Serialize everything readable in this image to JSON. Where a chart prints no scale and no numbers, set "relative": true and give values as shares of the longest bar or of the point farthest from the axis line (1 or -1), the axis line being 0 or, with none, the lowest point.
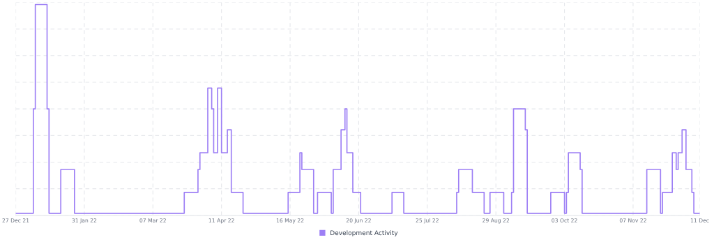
{
  "chart_data": {
    "type": "step",
    "relative": true,
    "grid": true,
    "legend": "bottom",
    "tick_labels": "x",
    "xlim": [
      "2021-12-27",
      "2022-12-11"
    ],
    "xticks": [
      {
        "value": "2021-12-27",
        "label": "27 Dec 21"
      },
      {
        "value": "2022-01-31",
        "label": "31 Jan 22"
      },
      {
        "value": "2022-03-07",
        "label": "07 Mar 22"
      },
      {
        "value": "2022-04-11",
        "label": "11 Apr 22"
      },
      {
        "value": "2022-05-16",
        "label": "16 May 22"
      },
      {
        "value": "2022-06-20",
        "label": "20 Jun 22"
      },
      {
        "value": "2022-07-25",
        "label": "25 Jul 22"
      },
      {
        "value": "2022-08-29",
        "label": "29 Aug 22"
      },
      {
        "value": "2022-10-03",
        "label": "03 Oct 22"
      },
      {
        "value": "2022-11-07",
        "label": "07 Nov 22"
      },
      {
        "value": "2022-12-11",
        "label": "11 Dec"
      }
    ],
    "x": [
      "2021-12-27",
      "2022-01-05",
      "2022-01-06",
      "2022-01-12",
      "2022-01-13",
      "2022-01-19",
      "2022-01-26",
      "2022-03-23",
      "2022-03-30",
      "2022-03-31",
      "2022-04-04",
      "2022-04-06",
      "2022-04-07",
      "2022-04-09",
      "2022-04-11",
      "2022-04-14",
      "2022-04-16",
      "2022-04-22",
      "2022-05-15",
      "2022-05-21",
      "2022-05-22",
      "2022-05-28",
      "2022-05-30",
      "2022-06-06",
      "2022-06-07",
      "2022-06-11",
      "2022-06-13",
      "2022-06-14",
      "2022-06-17",
      "2022-06-21",
      "2022-07-07",
      "2022-07-13",
      "2022-08-09",
      "2022-08-10",
      "2022-08-17",
      "2022-08-23",
      "2022-08-26",
      "2022-09-02",
      "2022-09-06",
      "2022-09-07",
      "2022-09-13",
      "2022-09-14",
      "2022-09-26",
      "2022-10-03",
      "2022-10-04",
      "2022-10-05",
      "2022-10-11",
      "2022-10-12",
      "2022-11-14",
      "2022-11-21",
      "2022-11-22",
      "2022-11-27",
      "2022-11-29",
      "2022-11-30",
      "2022-12-02",
      "2022-12-04",
      "2022-12-07",
      "2022-12-08",
      "2022-12-11"
    ],
    "series": [
      {
        "name": "Development Activity",
        "color": "#9d7ff5",
        "values": [
          0,
          0.5,
          1,
          0.5,
          0,
          0.21,
          0,
          0.1,
          0.21,
          0.29,
          0.6,
          0.5,
          0.29,
          0.6,
          0.29,
          0.4,
          0.1,
          0,
          0.1,
          0.29,
          0.21,
          0,
          0.1,
          0,
          0.21,
          0.4,
          0.5,
          0.29,
          0.1,
          0,
          0.1,
          0,
          0.1,
          0.21,
          0.1,
          0,
          0.1,
          0,
          0.1,
          0.5,
          0.4,
          0,
          0.1,
          0,
          0.1,
          0.29,
          0.21,
          0,
          0.21,
          0,
          0.1,
          0.29,
          0.21,
          0.29,
          0.4,
          0.21,
          0.1,
          0,
          0
        ]
      }
    ]
  }
}
